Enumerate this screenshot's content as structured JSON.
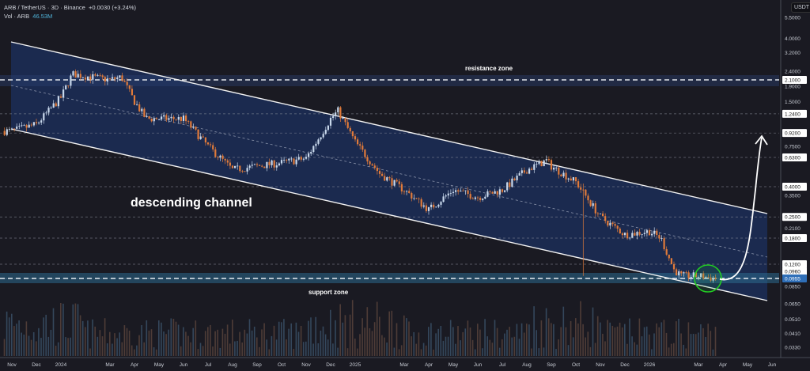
{
  "header": {
    "symbol": "ARB / TetherUS · 3D · Binance",
    "change": "+0.0030 (+3.24%)",
    "volume_label": "Vol · ARB",
    "volume_value": "46.53M"
  },
  "price_axis": {
    "currency": "USDT",
    "ticks": [
      "5.5000",
      "4.0000",
      "3.2000",
      "2.4000",
      "1.9000",
      "1.5000",
      "0.7500",
      "0.3500",
      "0.2100",
      "0.0850",
      "0.0650",
      "0.0510",
      "0.0410",
      "0.0330"
    ],
    "price_lines": [
      "2.1000",
      "1.2400",
      "0.9200",
      "0.6300",
      "0.4000",
      "0.2500",
      "0.1800",
      "0.1200",
      "0.0960"
    ],
    "current_price": "0.0955",
    "current_price_color": "#2f6fb8"
  },
  "time_axis": {
    "labels": [
      "Nov",
      "Dec",
      "2024",
      "Mar",
      "Apr",
      "May",
      "Jun",
      "Jul",
      "Aug",
      "Sep",
      "Oct",
      "Nov",
      "Dec",
      "2025",
      "Mar",
      "Apr",
      "May",
      "Jun",
      "Jul",
      "Aug",
      "Sep",
      "Oct",
      "Nov",
      "Dec",
      "2026",
      "Mar",
      "Apr",
      "May",
      "Jun"
    ]
  },
  "annotations": {
    "resistance": "resistance zone",
    "channel": "descending channel",
    "support": "support zone"
  },
  "colors": {
    "up_candle": "#c8d8ec",
    "down_candle": "#e07a3a",
    "channel_fill": "#1b2b52",
    "highlight_circle": "#22cc22"
  },
  "chart_data": {
    "type": "candlestick",
    "scale": "log",
    "interval": "3D",
    "ylim": [
      0.03,
      5.5
    ],
    "approx_close": [
      [
        "2023-11",
        0.95
      ],
      [
        "2023-12",
        1.05
      ],
      [
        "2024-01",
        1.6
      ],
      [
        "2024-01-15",
        2.3
      ],
      [
        "2024-03",
        2.1
      ],
      [
        "2024-03-15",
        2.2
      ],
      [
        "2024-04",
        1.5
      ],
      [
        "2024-04-15",
        1.15
      ],
      [
        "2024-05",
        1.15
      ],
      [
        "2024-06",
        1.15
      ],
      [
        "2024-07",
        0.75
      ],
      [
        "2024-08",
        0.52
      ],
      [
        "2024-09",
        0.55
      ],
      [
        "2024-10",
        0.58
      ],
      [
        "2024-11",
        0.62
      ],
      [
        "2024-12",
        1.15
      ],
      [
        "2024-12-10",
        1.3
      ],
      [
        "2025-01",
        0.8
      ],
      [
        "2025-02",
        0.49
      ],
      [
        "2025-03",
        0.38
      ],
      [
        "2025-04",
        0.28
      ],
      [
        "2025-05",
        0.38
      ],
      [
        "2025-06",
        0.34
      ],
      [
        "2025-07",
        0.38
      ],
      [
        "2025-08",
        0.52
      ],
      [
        "2025-08-25",
        0.6
      ],
      [
        "2025-09",
        0.55
      ],
      [
        "2025-10",
        0.43
      ],
      [
        "2025-11",
        0.25
      ],
      [
        "2025-12",
        0.19
      ],
      [
        "2026-01",
        0.2
      ],
      [
        "2026-01-15",
        0.18
      ],
      [
        "2026-02",
        0.11
      ],
      [
        "2026-02-10",
        0.1
      ],
      [
        "2026-03",
        0.1
      ],
      [
        "2026-03-25",
        0.0955
      ]
    ]
  }
}
